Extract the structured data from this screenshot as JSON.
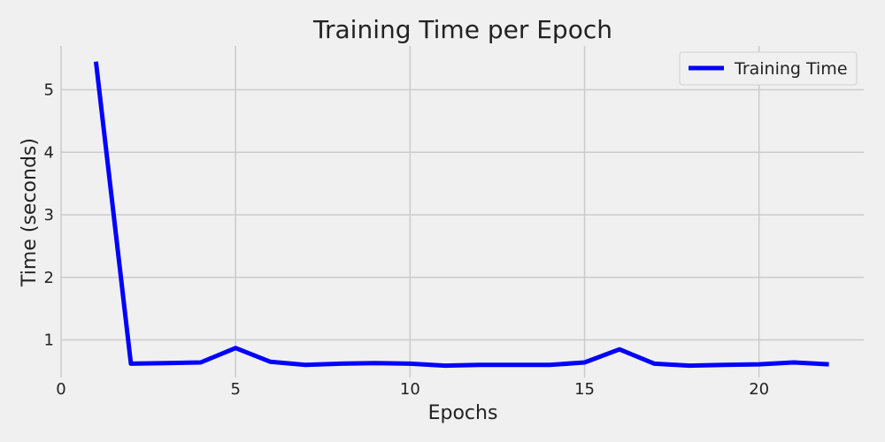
{
  "chart_data": {
    "type": "line",
    "title": "Training Time per Epoch",
    "xlabel": "Epochs",
    "ylabel": "Time (seconds)",
    "xlim": [
      0,
      23
    ],
    "ylim": [
      0.4,
      5.7
    ],
    "xticks": [
      0,
      5,
      10,
      15,
      20
    ],
    "yticks": [
      1,
      2,
      3,
      4,
      5
    ],
    "grid": true,
    "legend_position": "top-right",
    "series": [
      {
        "name": "Training Time",
        "color": "#0000ff",
        "x": [
          1,
          2,
          3,
          4,
          5,
          6,
          7,
          8,
          9,
          10,
          11,
          12,
          13,
          14,
          15,
          16,
          17,
          18,
          19,
          20,
          21,
          22
        ],
        "y": [
          5.45,
          0.62,
          0.63,
          0.64,
          0.87,
          0.65,
          0.6,
          0.62,
          0.63,
          0.62,
          0.59,
          0.6,
          0.6,
          0.6,
          0.64,
          0.85,
          0.62,
          0.59,
          0.6,
          0.61,
          0.64,
          0.61
        ]
      }
    ]
  }
}
